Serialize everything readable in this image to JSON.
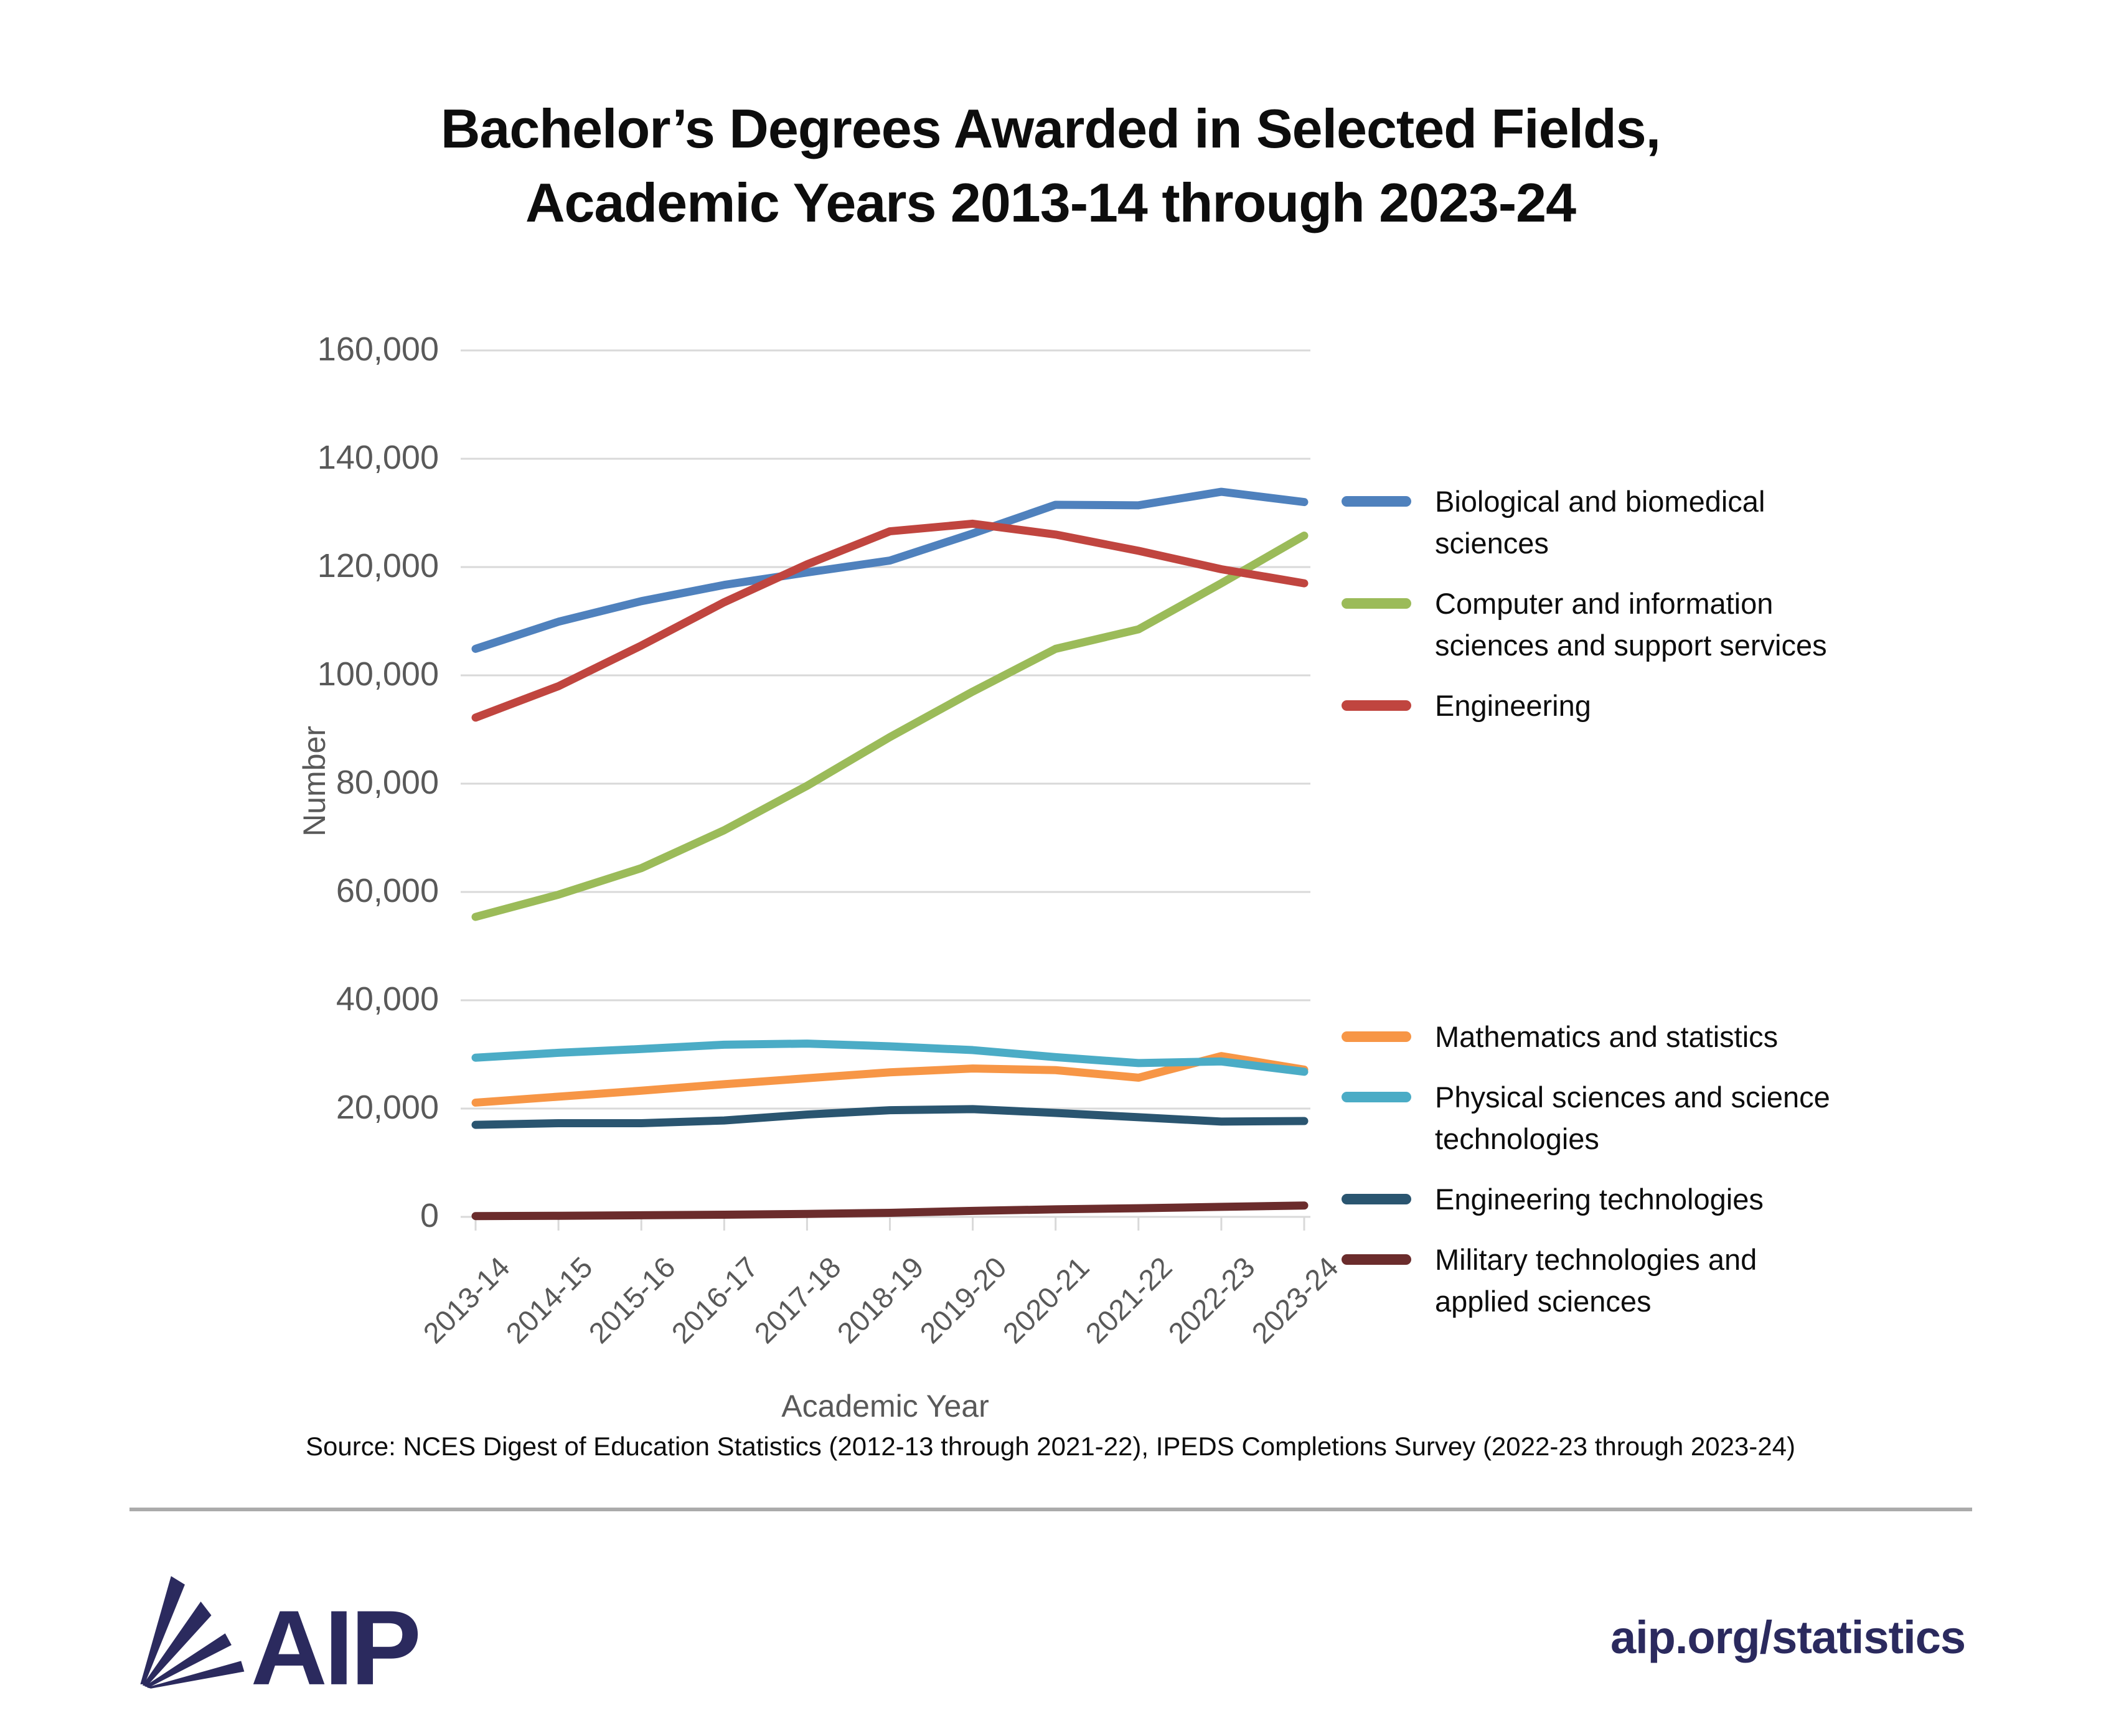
{
  "title": {
    "line1": "Bachelor’s Degrees Awarded in Selected Fields,",
    "line2": "Academic Years 2013-14 through 2023-24"
  },
  "axes": {
    "y_title": "Number",
    "x_title": "Academic Year"
  },
  "source": "Source: NCES Digest of Education Statistics (2012-13 through 2021-22), IPEDS Completions Survey (2022-23 through 2023-24)",
  "footer": {
    "logo_text": "AIP",
    "site": "aip.org/statistics",
    "brand_color": "#2b2a5e"
  },
  "chart_data": {
    "type": "line",
    "x": [
      "2013-14",
      "2014-15",
      "2015-16",
      "2016-17",
      "2017-18",
      "2018-19",
      "2019-20",
      "2020-21",
      "2021-22",
      "2022-23",
      "2023-24"
    ],
    "series": [
      {
        "name": "Biological and biomedical sciences",
        "color": "#4F81BD",
        "values": [
          104900,
          109900,
          113700,
          116700,
          119000,
          121200,
          126200,
          131500,
          131400,
          133900,
          132000
        ]
      },
      {
        "name": "Computer and information sciences and support services",
        "color": "#9BBB59",
        "values": [
          55400,
          59500,
          64400,
          71400,
          79600,
          88600,
          97000,
          104900,
          108500,
          117000,
          125800
        ]
      },
      {
        "name": "Engineering",
        "color": "#C0453F",
        "values": [
          92200,
          98000,
          105500,
          113500,
          120500,
          126600,
          128000,
          126000,
          123000,
          119600,
          117000
        ]
      },
      {
        "name": "Mathematics and statistics",
        "color": "#F79646",
        "values": [
          21100,
          22200,
          23300,
          24500,
          25600,
          26700,
          27400,
          27100,
          25700,
          29700,
          27200
        ]
      },
      {
        "name": "Physical sciences and science technologies",
        "color": "#4BACC6",
        "values": [
          29400,
          30300,
          31000,
          31800,
          32000,
          31500,
          30800,
          29500,
          28400,
          28700,
          26800
        ]
      },
      {
        "name": "Engineering technologies",
        "color": "#2A5570",
        "values": [
          17000,
          17300,
          17300,
          17800,
          18900,
          19700,
          19900,
          19200,
          18400,
          17600,
          17700
        ]
      },
      {
        "name": "Military technologies and applied sciences",
        "color": "#6B2C2C",
        "values": [
          150,
          200,
          300,
          400,
          550,
          750,
          1100,
          1400,
          1600,
          1850,
          2100
        ]
      }
    ],
    "y_ticks": [
      "0",
      "20,000",
      "40,000",
      "60,000",
      "80,000",
      "100,000",
      "120,000",
      "140,000",
      "160,000"
    ],
    "ylim": [
      0,
      160000
    ],
    "xlabel": "Academic Year",
    "ylabel": "Number",
    "layout": {
      "grid": true,
      "grid_color": "#D9D9D9",
      "tick_label_color": "#595959",
      "legend_position": "right",
      "legend_groups": [
        [
          0,
          1,
          2
        ],
        [
          3,
          4,
          5,
          6
        ]
      ]
    }
  }
}
